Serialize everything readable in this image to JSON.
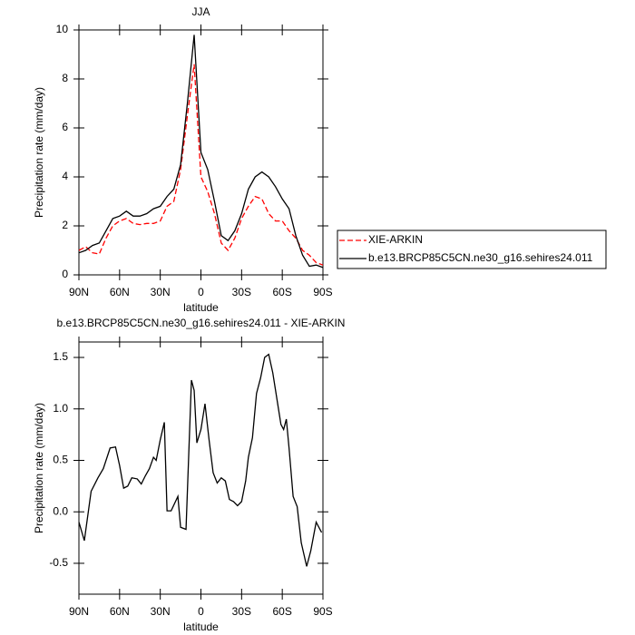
{
  "chart_data": [
    {
      "type": "line",
      "title": "JJA",
      "x_label": "latitude",
      "y_label": "Precipitation rate (mm/day)",
      "x": [
        90,
        85,
        80,
        75,
        70,
        65,
        60,
        55,
        50,
        45,
        40,
        35,
        30,
        25,
        20,
        15,
        10,
        5,
        0,
        -5,
        -10,
        -15,
        -20,
        -25,
        -30,
        -35,
        -40,
        -45,
        -50,
        -55,
        -60,
        -65,
        -70,
        -75,
        -80,
        -85,
        -90
      ],
      "series": [
        {
          "name": "XIE-ARKIN",
          "color": "#ff0000",
          "dash": true,
          "values": [
            1.0,
            1.15,
            0.9,
            0.85,
            1.5,
            2.0,
            2.2,
            2.3,
            2.1,
            2.05,
            2.1,
            2.1,
            2.2,
            2.8,
            3.0,
            4.3,
            6.5,
            8.6,
            4.0,
            3.4,
            2.5,
            1.3,
            1.0,
            1.5,
            2.3,
            2.8,
            3.2,
            3.1,
            2.5,
            2.2,
            2.2,
            1.8,
            1.5,
            1.0,
            0.8,
            0.5,
            0.4
          ]
        },
        {
          "name": "b.e13.BRCP85C5CN.ne30_g16.sehires24.011",
          "color": "#000000",
          "dash": false,
          "values": [
            0.9,
            1.0,
            1.2,
            1.3,
            1.8,
            2.3,
            2.4,
            2.6,
            2.4,
            2.4,
            2.5,
            2.7,
            2.8,
            3.2,
            3.5,
            4.5,
            7.0,
            9.8,
            5.0,
            4.3,
            3.0,
            1.6,
            1.4,
            1.8,
            2.5,
            3.5,
            4.0,
            4.2,
            4.0,
            3.6,
            3.1,
            2.7,
            1.6,
            0.8,
            0.35,
            0.4,
            0.3
          ]
        }
      ],
      "xlim": [
        90,
        -90
      ],
      "xticks": [
        {
          "value": 90,
          "label": "90N"
        },
        {
          "value": 60,
          "label": "60N"
        },
        {
          "value": 30,
          "label": "30N"
        },
        0,
        {
          "value": -30,
          "label": "30S"
        },
        {
          "value": -60,
          "label": "60S"
        },
        {
          "value": -90,
          "label": "90S"
        }
      ],
      "ylim": [
        0,
        10
      ],
      "yticks": [
        0,
        2,
        4,
        6,
        8,
        10
      ],
      "legend": "right"
    },
    {
      "type": "line",
      "title": "b.e13.BRCP85C5CN.ne30_g16.sehires24.011 - XIE-ARKIN",
      "x_label": "latitude",
      "y_label": "Precipitation rate (mm/day)",
      "x": [
        90,
        86,
        81,
        76,
        72,
        67,
        63,
        60,
        57,
        54,
        51,
        47,
        44,
        41,
        38,
        35,
        33,
        30,
        27,
        25,
        22,
        17,
        15,
        11,
        7,
        5,
        3,
        0,
        -3,
        -6,
        -9,
        -12,
        -15,
        -18,
        -21,
        -24,
        -27,
        -30,
        -33,
        -35,
        -38,
        -41,
        -44,
        -47,
        -50,
        -53,
        -56,
        -59,
        -61,
        -63,
        -65,
        -68,
        -71,
        -74,
        -78,
        -81,
        -85,
        -89
      ],
      "series": [
        {
          "name": "b.e13.BRCP85C5CN.ne30_g16.sehires24.011 - XIE-ARKIN",
          "color": "#000000",
          "dash": false,
          "values": [
            -0.1,
            -0.28,
            0.2,
            0.33,
            0.42,
            0.62,
            0.63,
            0.45,
            0.23,
            0.25,
            0.33,
            0.32,
            0.27,
            0.35,
            0.42,
            0.53,
            0.5,
            0.7,
            0.87,
            0.01,
            0.01,
            0.15,
            -0.15,
            -0.17,
            1.28,
            1.18,
            0.67,
            0.8,
            1.05,
            0.7,
            0.38,
            0.28,
            0.33,
            0.3,
            0.12,
            0.1,
            0.06,
            0.1,
            0.3,
            0.53,
            0.72,
            1.15,
            1.3,
            1.5,
            1.53,
            1.35,
            1.1,
            0.85,
            0.8,
            0.9,
            0.62,
            0.15,
            0.05,
            -0.3,
            -0.53,
            -0.38,
            -0.1,
            -0.2
          ]
        }
      ],
      "xlim": [
        90,
        -90
      ],
      "xticks": [
        {
          "value": 90,
          "label": "90N"
        },
        {
          "value": 60,
          "label": "60N"
        },
        {
          "value": 30,
          "label": "30N"
        },
        0,
        {
          "value": -30,
          "label": "30S"
        },
        {
          "value": -60,
          "label": "60S"
        },
        {
          "value": -90,
          "label": "90S"
        }
      ],
      "ylim": [
        -0.8,
        1.65
      ],
      "yticks": [
        -0.5,
        {
          "value": 0,
          "label": "0.0"
        },
        0.5,
        {
          "value": 1,
          "label": "1.0"
        },
        1.5
      ]
    }
  ]
}
